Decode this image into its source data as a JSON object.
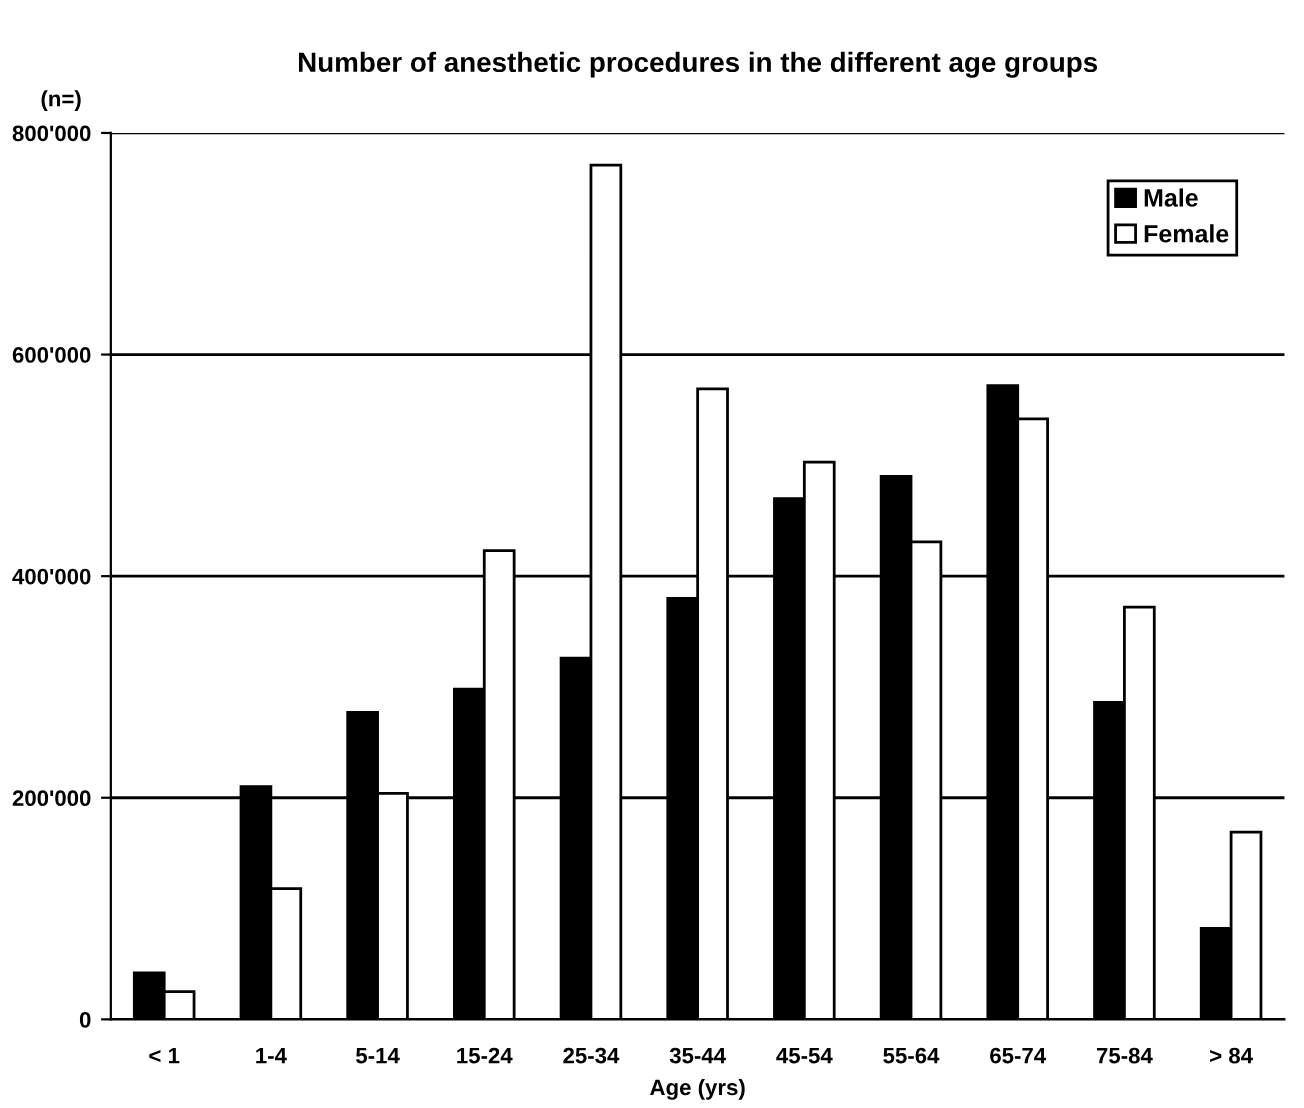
{
  "chart_data": {
    "type": "bar",
    "title": "Number of anesthetic procedures in the different age groups",
    "xlabel": "Age (yrs)",
    "ylabel": "(n=)",
    "categories": [
      "< 1",
      "1-4",
      "5-14",
      "15-24",
      "25-34",
      "35-44",
      "45-54",
      "55-64",
      "65-74",
      "75-84",
      "> 84"
    ],
    "series": [
      {
        "name": "Male",
        "color": "#000000",
        "values": [
          42000,
          210000,
          277000,
          298000,
          326000,
          380000,
          470000,
          490000,
          572000,
          286000,
          82000
        ]
      },
      {
        "name": "Female",
        "color": "#ffffff",
        "values": [
          25000,
          118000,
          204000,
          423000,
          771000,
          569000,
          503000,
          431000,
          542000,
          372000,
          169000
        ]
      }
    ],
    "ylim": [
      0,
      800000
    ],
    "yticks": [
      {
        "value": 0,
        "label": "0"
      },
      {
        "value": 200000,
        "label": "200'000"
      },
      {
        "value": 400000,
        "label": "400'000"
      },
      {
        "value": 600000,
        "label": "600'000"
      },
      {
        "value": 800000,
        "label": "800'000"
      }
    ],
    "grid": "y",
    "legend": "top right"
  }
}
